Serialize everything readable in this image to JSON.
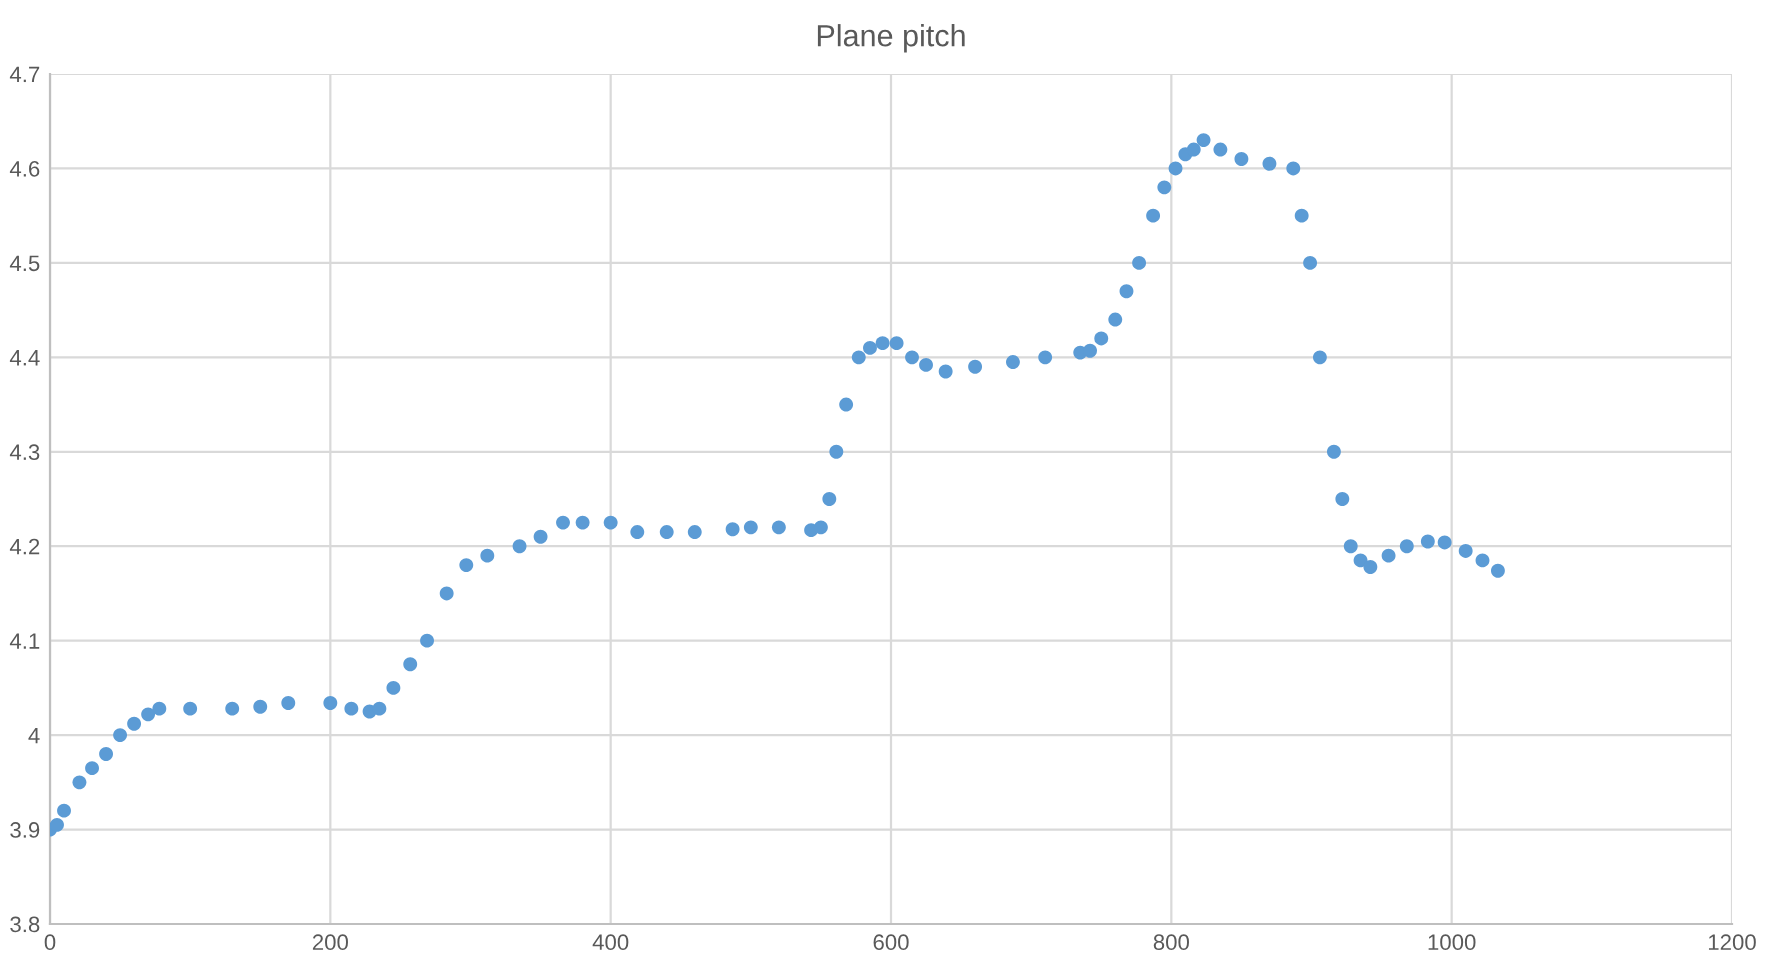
{
  "chart_data": {
    "type": "scatter",
    "title": "Plane pitch",
    "series": [
      {
        "color": "#5b9bd5",
        "x": [
          0,
          5,
          10,
          21,
          30,
          40,
          50,
          60,
          70,
          78,
          100,
          130,
          150,
          170,
          200,
          215,
          228,
          235,
          245,
          257,
          269,
          283,
          297,
          312,
          335,
          350,
          366,
          380,
          400,
          419,
          440,
          460,
          487,
          500,
          520,
          543,
          550,
          556,
          561,
          568,
          577,
          585,
          594,
          604,
          615,
          625,
          639,
          660,
          687,
          710,
          735,
          742,
          750,
          760,
          768,
          777,
          787,
          795,
          803,
          810,
          816,
          823,
          835,
          850,
          870,
          887,
          893,
          899,
          906,
          916,
          922,
          928,
          935,
          942,
          955,
          968,
          983,
          995,
          1010,
          1022,
          1033
        ],
        "values": [
          3.9,
          3.905,
          3.92,
          3.95,
          3.965,
          3.98,
          4.0,
          4.012,
          4.022,
          4.028,
          4.028,
          4.028,
          4.03,
          4.034,
          4.034,
          4.028,
          4.025,
          4.028,
          4.05,
          4.075,
          4.1,
          4.15,
          4.18,
          4.19,
          4.2,
          4.21,
          4.225,
          4.225,
          4.225,
          4.215,
          4.215,
          4.215,
          4.218,
          4.22,
          4.22,
          4.217,
          4.22,
          4.25,
          4.3,
          4.35,
          4.4,
          4.41,
          4.415,
          4.415,
          4.4,
          4.392,
          4.385,
          4.39,
          4.395,
          4.4,
          4.405,
          4.407,
          4.42,
          4.44,
          4.47,
          4.5,
          4.55,
          4.58,
          4.6,
          4.615,
          4.62,
          4.63,
          4.62,
          4.61,
          4.605,
          4.6,
          4.55,
          4.5,
          4.4,
          4.3,
          4.25,
          4.2,
          4.185,
          4.178,
          4.19,
          4.2,
          4.205,
          4.204,
          4.195,
          4.185,
          4.174
        ]
      }
    ],
    "xlim": [
      0,
      1200
    ],
    "xticks": [
      0,
      200,
      400,
      600,
      800,
      1000,
      1200
    ],
    "ylim": [
      3.8,
      4.7
    ],
    "yticks": [
      3.8,
      3.9,
      4,
      4.1,
      4.2,
      4.3,
      4.4,
      4.5,
      4.6,
      4.7
    ],
    "grid": true,
    "marker": "circle"
  }
}
